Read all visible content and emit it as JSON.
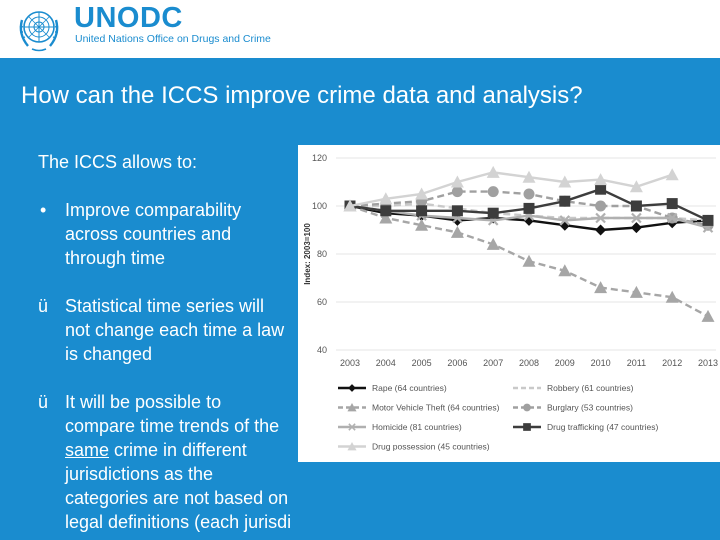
{
  "header": {
    "org_name": "UNODC",
    "org_full": "United Nations Office on Drugs and Crime"
  },
  "slide": {
    "title": "How can the ICCS improve crime data and analysis?",
    "intro": "The ICCS allows to:",
    "points": [
      {
        "marker": "•",
        "text": "Improve comparability across countries and through time"
      },
      {
        "marker": "ü",
        "text": "Statistical time series will not change each time a law is changed"
      },
      {
        "marker": "ü",
        "text_before": "It will be possible to compare time trends of the ",
        "text_underlined": "same",
        "text_after": " crime in different jurisdictions as the categories are not based on legal definitions (each jurisdi"
      }
    ]
  },
  "chart_data": {
    "type": "line",
    "ylabel": "Index: 2003=100",
    "ylim": [
      40,
      120
    ],
    "yticks": [
      40,
      60,
      80,
      100,
      120
    ],
    "categories": [
      "2003",
      "2004",
      "2005",
      "2006",
      "2007",
      "2008",
      "2009",
      "2010",
      "2011",
      "2012",
      "2013"
    ],
    "grid": true,
    "legend_position": "bottom",
    "series": [
      {
        "name": "Rape (64 countries)",
        "color": "#111111",
        "dash": false,
        "marker": "diamond",
        "values": [
          100,
          97,
          96,
          94,
          95,
          94,
          92,
          90,
          91,
          93,
          94
        ]
      },
      {
        "name": "Robbery (61 countries)",
        "color": "#c9c9c9",
        "dash": true,
        "marker": "none",
        "values": [
          100,
          100,
          101,
          99,
          97,
          96,
          95,
          95,
          95,
          95,
          94
        ]
      },
      {
        "name": "Motor Vehicle Theft (64 countries)",
        "color": "#a6a6a6",
        "dash": true,
        "marker": "triangle",
        "values": [
          100,
          95,
          92,
          89,
          84,
          77,
          73,
          66,
          64,
          62,
          54
        ]
      },
      {
        "name": "Burglary (53 countries)",
        "color": "#a0a0a0",
        "dash": true,
        "marker": "circle",
        "values": [
          100,
          101,
          102,
          106,
          106,
          105,
          102,
          100,
          100,
          95,
          92
        ]
      },
      {
        "name": "Homicide (81 countries)",
        "color": "#b0b0b0",
        "dash": false,
        "marker": "x",
        "values": [
          100,
          98,
          96,
          95,
          94,
          96,
          94,
          95,
          95,
          95,
          91
        ]
      },
      {
        "name": "Drug trafficking (47 countries)",
        "color": "#3d3d3d",
        "dash": false,
        "marker": "square",
        "values": [
          100,
          98,
          98,
          98,
          97,
          99,
          102,
          107,
          100,
          101,
          94
        ]
      },
      {
        "name": "Drug possession (45 countries)",
        "color": "#d3d3d3",
        "dash": false,
        "marker": "triangle",
        "values": [
          100,
          103,
          105,
          110,
          114,
          112,
          110,
          111,
          108,
          113,
          null
        ]
      }
    ]
  }
}
